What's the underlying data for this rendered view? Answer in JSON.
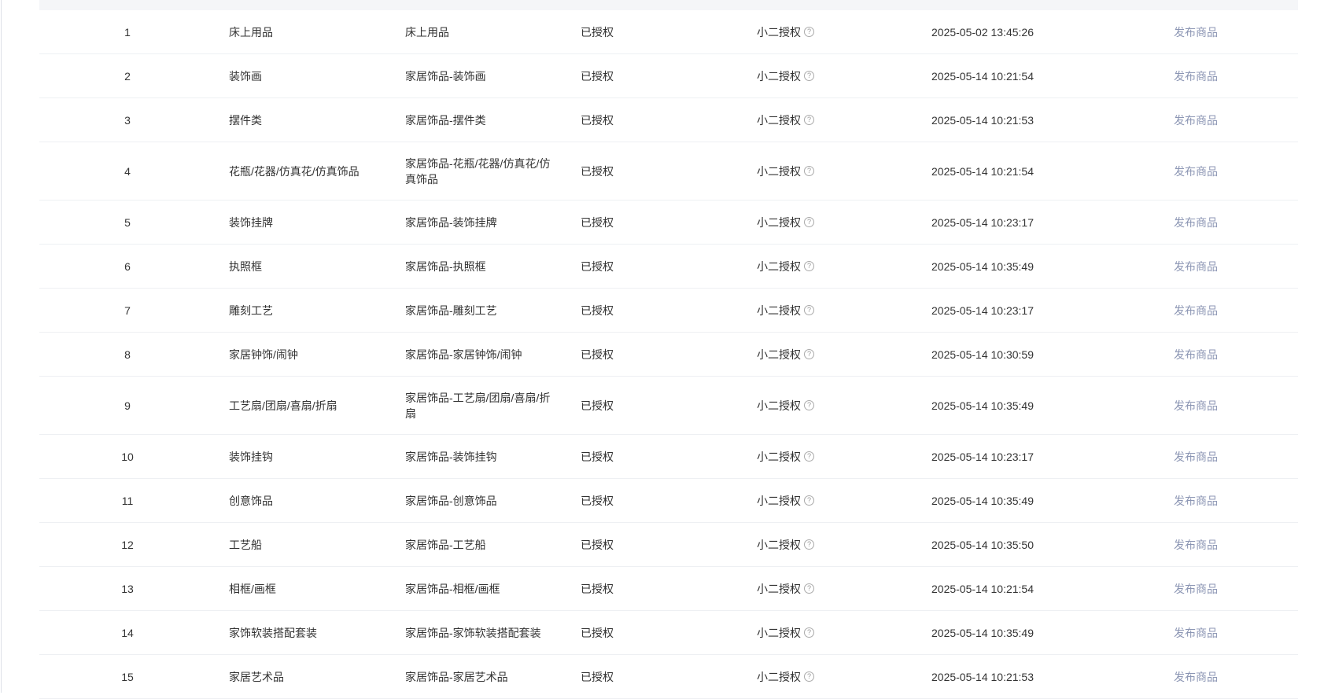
{
  "table": {
    "rows": [
      {
        "index": "1",
        "category": "床上用品",
        "path": "床上用品",
        "status": "已授权",
        "auth_type": "小二授权",
        "time": "2025-05-02 13:45:26",
        "action": "发布商品"
      },
      {
        "index": "2",
        "category": "装饰画",
        "path": "家居饰品-装饰画",
        "status": "已授权",
        "auth_type": "小二授权",
        "time": "2025-05-14 10:21:54",
        "action": "发布商品"
      },
      {
        "index": "3",
        "category": "摆件类",
        "path": "家居饰品-摆件类",
        "status": "已授权",
        "auth_type": "小二授权",
        "time": "2025-05-14 10:21:53",
        "action": "发布商品"
      },
      {
        "index": "4",
        "category": "花瓶/花器/仿真花/仿真饰品",
        "path": "家居饰品-花瓶/花器/仿真花/仿真饰品",
        "status": "已授权",
        "auth_type": "小二授权",
        "time": "2025-05-14 10:21:54",
        "action": "发布商品"
      },
      {
        "index": "5",
        "category": "装饰挂牌",
        "path": "家居饰品-装饰挂牌",
        "status": "已授权",
        "auth_type": "小二授权",
        "time": "2025-05-14 10:23:17",
        "action": "发布商品"
      },
      {
        "index": "6",
        "category": "执照框",
        "path": "家居饰品-执照框",
        "status": "已授权",
        "auth_type": "小二授权",
        "time": "2025-05-14 10:35:49",
        "action": "发布商品"
      },
      {
        "index": "7",
        "category": "雕刻工艺",
        "path": "家居饰品-雕刻工艺",
        "status": "已授权",
        "auth_type": "小二授权",
        "time": "2025-05-14 10:23:17",
        "action": "发布商品"
      },
      {
        "index": "8",
        "category": "家居钟饰/闹钟",
        "path": "家居饰品-家居钟饰/闹钟",
        "status": "已授权",
        "auth_type": "小二授权",
        "time": "2025-05-14 10:30:59",
        "action": "发布商品"
      },
      {
        "index": "9",
        "category": "工艺扇/团扇/喜扇/折扇",
        "path": "家居饰品-工艺扇/团扇/喜扇/折扇",
        "status": "已授权",
        "auth_type": "小二授权",
        "time": "2025-05-14 10:35:49",
        "action": "发布商品"
      },
      {
        "index": "10",
        "category": "装饰挂钩",
        "path": "家居饰品-装饰挂钩",
        "status": "已授权",
        "auth_type": "小二授权",
        "time": "2025-05-14 10:23:17",
        "action": "发布商品"
      },
      {
        "index": "11",
        "category": "创意饰品",
        "path": "家居饰品-创意饰品",
        "status": "已授权",
        "auth_type": "小二授权",
        "time": "2025-05-14 10:35:49",
        "action": "发布商品"
      },
      {
        "index": "12",
        "category": "工艺船",
        "path": "家居饰品-工艺船",
        "status": "已授权",
        "auth_type": "小二授权",
        "time": "2025-05-14 10:35:50",
        "action": "发布商品"
      },
      {
        "index": "13",
        "category": "相框/画框",
        "path": "家居饰品-相框/画框",
        "status": "已授权",
        "auth_type": "小二授权",
        "time": "2025-05-14 10:21:54",
        "action": "发布商品"
      },
      {
        "index": "14",
        "category": "家饰软装搭配套装",
        "path": "家居饰品-家饰软装搭配套装",
        "status": "已授权",
        "auth_type": "小二授权",
        "time": "2025-05-14 10:35:49",
        "action": "发布商品"
      },
      {
        "index": "15",
        "category": "家居艺术品",
        "path": "家居饰品-家居艺术品",
        "status": "已授权",
        "auth_type": "小二授权",
        "time": "2025-05-14 10:21:53",
        "action": "发布商品"
      }
    ],
    "help_icon": "question-circle-icon",
    "link_color": "#8c96b4"
  }
}
